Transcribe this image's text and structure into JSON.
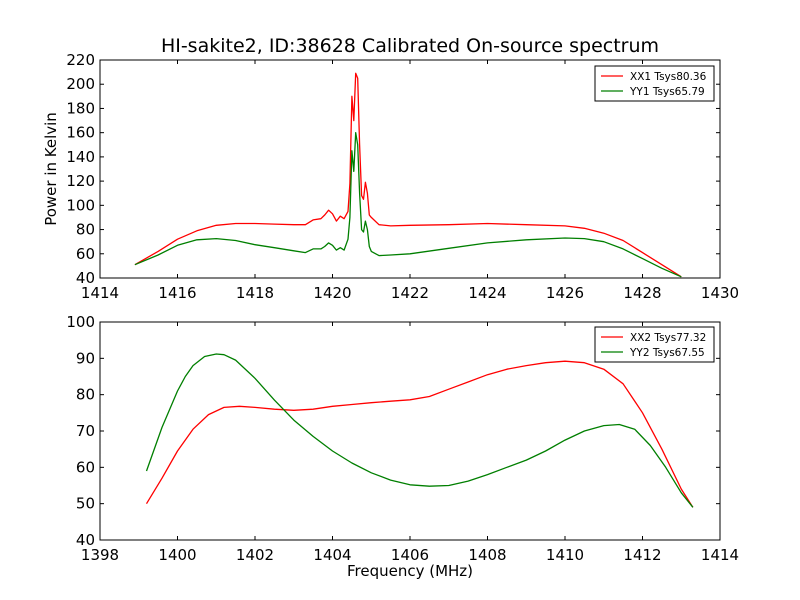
{
  "title": "HI-sakite2, ID:38628 Calibrated On-source spectrum",
  "colors": {
    "xx": "#ff0000",
    "yy": "#007f00"
  },
  "chart_data": [
    {
      "type": "line",
      "ylabel": "Power in Kelvin",
      "xlabel": "",
      "xlim": [
        1414,
        1430
      ],
      "ylim": [
        40,
        220
      ],
      "xticks": [
        "1414",
        "1416",
        "1418",
        "1420",
        "1422",
        "1424",
        "1426",
        "1428",
        "1430"
      ],
      "yticks": [
        "40",
        "60",
        "80",
        "100",
        "120",
        "140",
        "160",
        "180",
        "200",
        "220"
      ],
      "grid": false,
      "legend_position": "top-right",
      "series": [
        {
          "name": "XX1 Tsys80.36",
          "color": "#ff0000",
          "x": [
            1414.9,
            1415.5,
            1416.0,
            1416.5,
            1417.0,
            1417.5,
            1418.0,
            1418.5,
            1419.0,
            1419.3,
            1419.5,
            1419.7,
            1419.8,
            1419.9,
            1420.0,
            1420.1,
            1420.2,
            1420.3,
            1420.4,
            1420.45,
            1420.5,
            1420.55,
            1420.6,
            1420.65,
            1420.7,
            1420.75,
            1420.8,
            1420.85,
            1420.9,
            1420.95,
            1421.0,
            1421.2,
            1421.5,
            1422.0,
            1423.0,
            1424.0,
            1425.0,
            1426.0,
            1426.5,
            1427.0,
            1427.5,
            1428.0,
            1428.5,
            1429.0
          ],
          "y": [
            51,
            62,
            72,
            79,
            83.5,
            85,
            85,
            84.5,
            84,
            84,
            88,
            89,
            92,
            96,
            93,
            87,
            91,
            89,
            95,
            118,
            190,
            170,
            209,
            205,
            150,
            108,
            105,
            119,
            110,
            92,
            90,
            84,
            83,
            83.5,
            84,
            85,
            84,
            83,
            81,
            77,
            71,
            61,
            51,
            41
          ]
        },
        {
          "name": "YY1 Tsys65.79",
          "color": "#007f00",
          "x": [
            1414.9,
            1415.5,
            1416.0,
            1416.5,
            1417.0,
            1417.5,
            1418.0,
            1418.5,
            1419.0,
            1419.3,
            1419.5,
            1419.7,
            1419.8,
            1419.9,
            1420.0,
            1420.1,
            1420.2,
            1420.3,
            1420.4,
            1420.45,
            1420.5,
            1420.55,
            1420.6,
            1420.65,
            1420.7,
            1420.75,
            1420.8,
            1420.85,
            1420.9,
            1420.95,
            1421.0,
            1421.2,
            1421.5,
            1422.0,
            1423.0,
            1424.0,
            1425.0,
            1426.0,
            1426.5,
            1427.0,
            1427.5,
            1428.0,
            1428.5,
            1429.0
          ],
          "y": [
            51,
            59,
            67,
            71.5,
            72.5,
            71,
            67.5,
            65,
            62.5,
            61,
            64,
            64,
            66,
            69,
            67,
            63,
            65,
            63,
            72,
            90,
            145,
            128,
            160,
            150,
            110,
            80,
            78,
            87,
            80,
            66,
            62,
            58.5,
            59,
            60,
            64.5,
            69,
            71.5,
            73,
            72.5,
            70,
            64,
            56,
            48,
            41
          ]
        }
      ]
    },
    {
      "type": "line",
      "ylabel": "",
      "xlabel": "Frequency (MHz)",
      "xlim": [
        1398,
        1414
      ],
      "ylim": [
        40,
        100
      ],
      "xticks": [
        "1398",
        "1400",
        "1402",
        "1404",
        "1406",
        "1408",
        "1410",
        "1412",
        "1414"
      ],
      "yticks": [
        "40",
        "50",
        "60",
        "70",
        "80",
        "90",
        "100"
      ],
      "grid": false,
      "legend_position": "top-right",
      "series": [
        {
          "name": "XX2 Tsys77.32",
          "color": "#ff0000",
          "x": [
            1399.2,
            1399.6,
            1400.0,
            1400.4,
            1400.8,
            1401.2,
            1401.6,
            1402.0,
            1402.5,
            1403.0,
            1403.5,
            1404.0,
            1404.5,
            1405.0,
            1405.5,
            1406.0,
            1406.5,
            1407.0,
            1407.5,
            1408.0,
            1408.5,
            1409.0,
            1409.5,
            1410.0,
            1410.5,
            1411.0,
            1411.5,
            1412.0,
            1412.5,
            1413.0,
            1413.3
          ],
          "y": [
            50,
            57,
            64.5,
            70.5,
            74.5,
            76.5,
            76.8,
            76.5,
            76,
            75.7,
            76,
            76.8,
            77.3,
            77.8,
            78.2,
            78.6,
            79.5,
            81.5,
            83.5,
            85.5,
            87,
            88,
            88.8,
            89.2,
            88.8,
            87,
            83,
            75,
            65,
            54,
            49
          ]
        },
        {
          "name": "YY2 Tsys67.55",
          "color": "#007f00",
          "x": [
            1399.2,
            1399.6,
            1400.0,
            1400.2,
            1400.4,
            1400.7,
            1401.0,
            1401.2,
            1401.5,
            1402.0,
            1402.5,
            1403.0,
            1403.5,
            1404.0,
            1404.5,
            1405.0,
            1405.5,
            1406.0,
            1406.5,
            1407.0,
            1407.5,
            1408.0,
            1408.5,
            1409.0,
            1409.5,
            1410.0,
            1410.5,
            1411.0,
            1411.4,
            1411.8,
            1412.2,
            1412.6,
            1413.0,
            1413.3
          ],
          "y": [
            59,
            71,
            81,
            85,
            88,
            90.5,
            91.2,
            91,
            89.5,
            84.5,
            78.5,
            73,
            68.5,
            64.5,
            61.2,
            58.5,
            56.5,
            55.2,
            54.8,
            55,
            56.2,
            58,
            60,
            62,
            64.5,
            67.5,
            70,
            71.5,
            71.8,
            70.5,
            66,
            60,
            53,
            49
          ]
        }
      ]
    }
  ]
}
